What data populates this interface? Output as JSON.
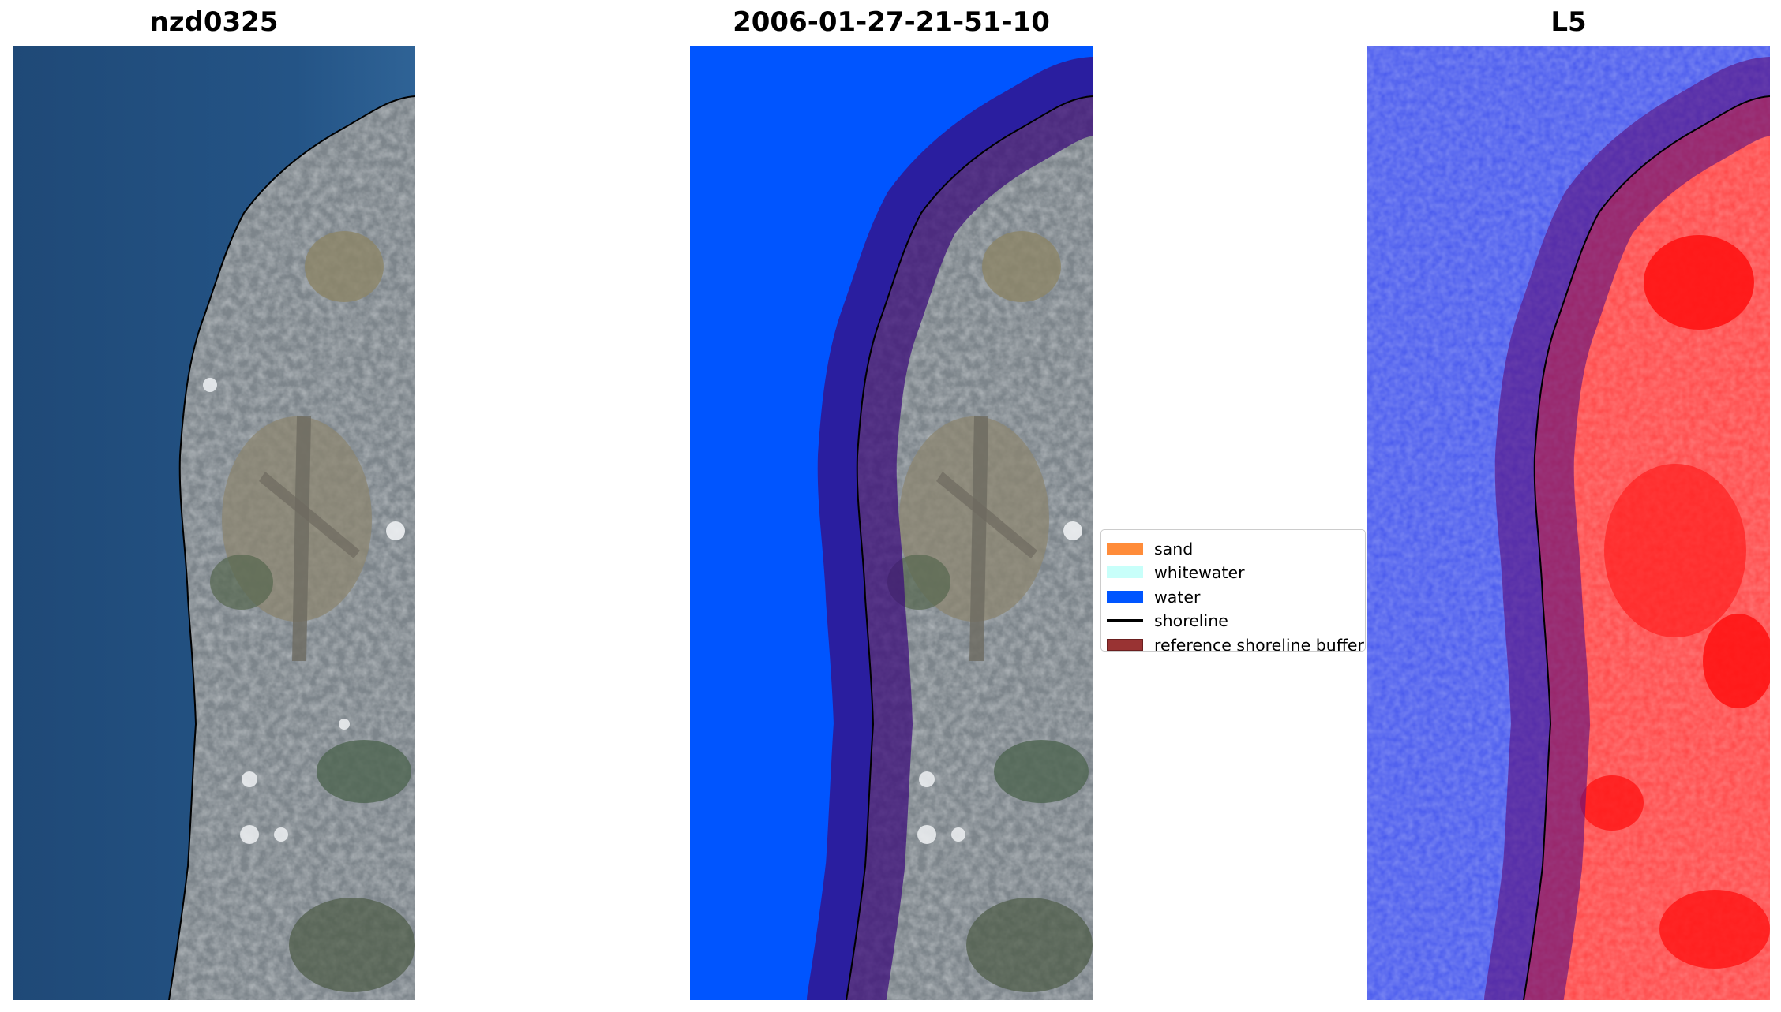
{
  "panels": [
    {
      "title": "nzd0325",
      "kind": "rgb-composite"
    },
    {
      "title": "2006-01-27-21-51-10",
      "kind": "classified-overlay"
    },
    {
      "title": "L5",
      "kind": "index-map"
    }
  ],
  "legend": {
    "entries": [
      {
        "label": "sand",
        "type": "patch",
        "color": "#ff8c3a"
      },
      {
        "label": "whitewater",
        "type": "patch",
        "color": "#c8fffa"
      },
      {
        "label": "water",
        "type": "patch",
        "color": "#0055ff"
      },
      {
        "label": "shoreline",
        "type": "line",
        "color": "#000000"
      },
      {
        "label": "reference shoreline buffer",
        "type": "patch",
        "color": "#993333"
      }
    ]
  },
  "colors": {
    "sea_dark": "#1d4a79",
    "land_gray": "#7a8289",
    "water_class": "#0055ff",
    "buffer_overlay": "#5a1ea3",
    "index_water": "#5a66ee",
    "index_land": "#ff3030"
  }
}
